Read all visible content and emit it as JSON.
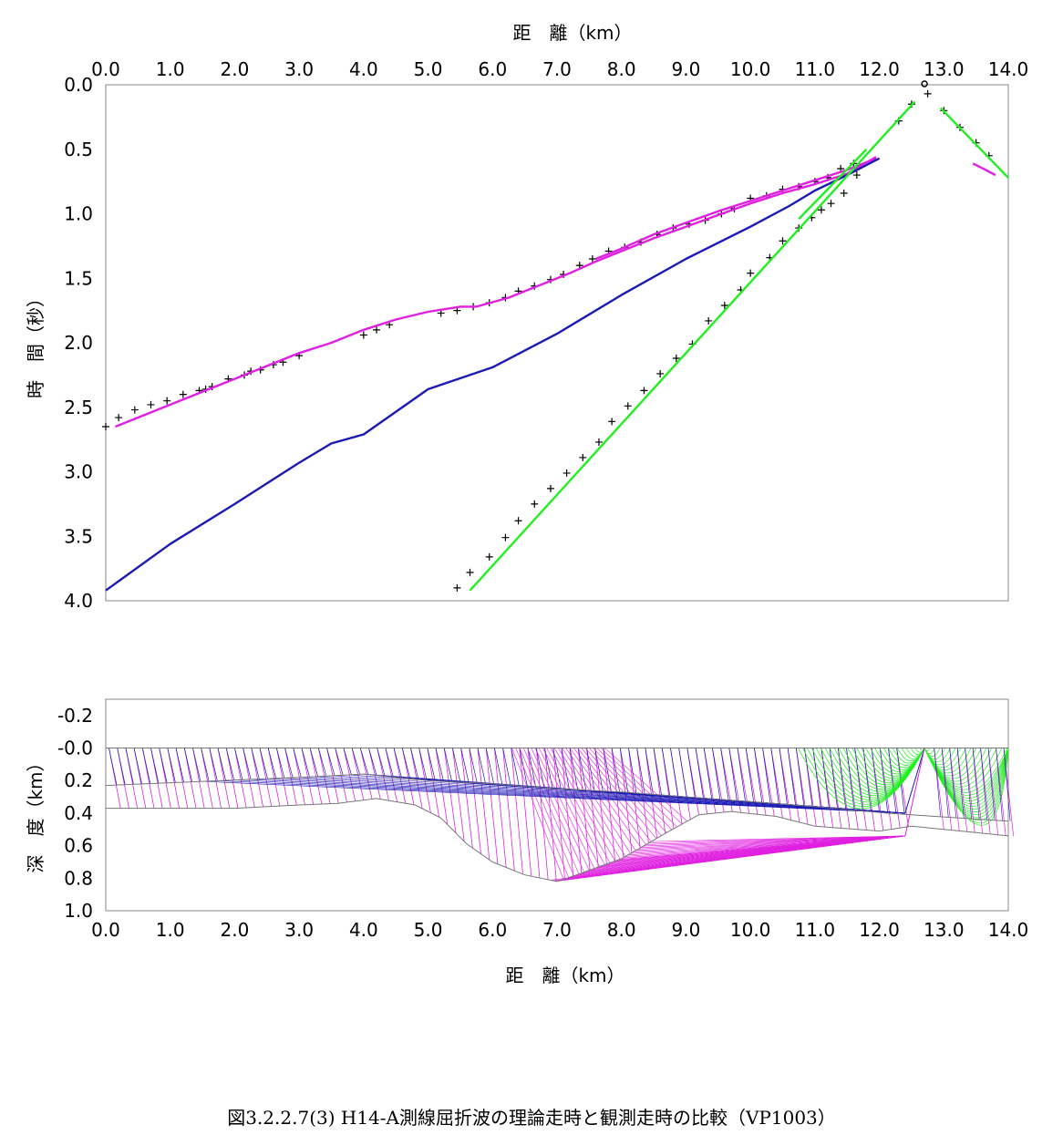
{
  "caption": "図3.2.2.7(3)  H14-A測線屈折波の理論走時と観測走時の比較（VP1003）",
  "colors": {
    "magenta": "#e020e0",
    "blue": "#1a1ab4",
    "green": "#22ee22",
    "frame": "#888888",
    "layer": "#777777",
    "marker": "#000000"
  },
  "chart_data": [
    {
      "type": "scatter",
      "title": "",
      "xlabel": "距　離（km）",
      "ylabel": "時　間（秒）",
      "xlim": [
        0,
        14
      ],
      "ylim": [
        4,
        0
      ],
      "y_inverted": true,
      "grid": false,
      "x_axis_position": "top",
      "x_ticks": [
        "0.0",
        "1.0",
        "2.0",
        "3.0",
        "4.0",
        "5.0",
        "6.0",
        "7.0",
        "8.0",
        "9.0",
        "10.0",
        "11.0",
        "12.0",
        "13.0",
        "14.0"
      ],
      "y_ticks": [
        "0.0",
        "0.5",
        "1.0",
        "1.5",
        "2.0",
        "2.5",
        "3.0",
        "3.5",
        "4.0"
      ],
      "source_x": 12.7,
      "series": [
        {
          "marker": "plus",
          "color": "marker",
          "points": [
            [
              0,
              2.65
            ],
            [
              0.2,
              2.58
            ],
            [
              0.45,
              2.52
            ],
            [
              0.7,
              2.48
            ],
            [
              0.95,
              2.45
            ],
            [
              1.2,
              2.4
            ],
            [
              1.45,
              2.37
            ],
            [
              1.55,
              2.36
            ],
            [
              1.65,
              2.34
            ],
            [
              1.9,
              2.28
            ],
            [
              2.15,
              2.25
            ],
            [
              2.25,
              2.22
            ],
            [
              2.4,
              2.21
            ],
            [
              2.6,
              2.17
            ],
            [
              2.75,
              2.15
            ],
            [
              3.0,
              2.1
            ],
            [
              4.0,
              1.94
            ],
            [
              4.2,
              1.9
            ],
            [
              4.4,
              1.86
            ],
            [
              5.2,
              1.77
            ],
            [
              5.45,
              1.75
            ],
            [
              5.7,
              1.72
            ],
            [
              5.95,
              1.69
            ],
            [
              6.2,
              1.65
            ],
            [
              6.4,
              1.6
            ],
            [
              6.65,
              1.56
            ],
            [
              6.9,
              1.51
            ],
            [
              7.1,
              1.47
            ],
            [
              7.35,
              1.4
            ],
            [
              7.55,
              1.35
            ],
            [
              7.8,
              1.29
            ],
            [
              8.05,
              1.26
            ],
            [
              8.3,
              1.22
            ],
            [
              8.55,
              1.16
            ],
            [
              8.8,
              1.11
            ],
            [
              9.05,
              1.08
            ],
            [
              9.3,
              1.05
            ],
            [
              9.55,
              1.0
            ],
            [
              9.75,
              0.96
            ],
            [
              10.0,
              0.88
            ],
            [
              10.25,
              0.86
            ],
            [
              10.5,
              0.81
            ],
            [
              10.75,
              0.79
            ],
            [
              11.0,
              0.75
            ],
            [
              11.2,
              0.72
            ],
            [
              11.4,
              0.65
            ],
            [
              11.6,
              0.61
            ],
            [
              12.3,
              0.28
            ],
            [
              12.5,
              0.15
            ],
            [
              12.75,
              0.07
            ],
            [
              13.0,
              0.2
            ],
            [
              13.25,
              0.33
            ],
            [
              13.5,
              0.45
            ],
            [
              13.7,
              0.55
            ],
            [
              5.45,
              3.9
            ],
            [
              5.65,
              3.78
            ],
            [
              5.95,
              3.66
            ],
            [
              6.2,
              3.51
            ],
            [
              6.4,
              3.38
            ],
            [
              6.65,
              3.25
            ],
            [
              6.9,
              3.13
            ],
            [
              7.15,
              3.01
            ],
            [
              7.4,
              2.89
            ],
            [
              7.65,
              2.77
            ],
            [
              7.85,
              2.61
            ],
            [
              8.1,
              2.49
            ],
            [
              8.35,
              2.37
            ],
            [
              8.6,
              2.24
            ],
            [
              8.85,
              2.12
            ],
            [
              9.1,
              2.01
            ],
            [
              9.35,
              1.83
            ],
            [
              9.6,
              1.71
            ],
            [
              9.85,
              1.59
            ],
            [
              10.0,
              1.46
            ],
            [
              10.3,
              1.34
            ],
            [
              10.5,
              1.21
            ],
            [
              10.75,
              1.11
            ],
            [
              10.95,
              1.03
            ],
            [
              11.1,
              0.97
            ],
            [
              11.25,
              0.92
            ],
            [
              11.45,
              0.84
            ],
            [
              11.65,
              0.7
            ]
          ]
        },
        {
          "marker": "line",
          "color": "magenta",
          "points": [
            [
              0.15,
              2.65
            ],
            [
              1,
              2.48
            ],
            [
              2,
              2.28
            ],
            [
              3,
              2.08
            ],
            [
              3.5,
              2.0
            ],
            [
              4,
              1.9
            ],
            [
              4.5,
              1.82
            ],
            [
              5,
              1.76
            ],
            [
              5.5,
              1.72
            ],
            [
              5.75,
              1.72
            ],
            [
              6.25,
              1.65
            ],
            [
              6.7,
              1.56
            ],
            [
              7.2,
              1.46
            ],
            [
              7.6,
              1.37
            ],
            [
              8,
              1.29
            ],
            [
              8.5,
              1.19
            ],
            [
              9,
              1.1
            ],
            [
              9.5,
              1.01
            ],
            [
              10,
              0.92
            ],
            [
              10.5,
              0.84
            ],
            [
              11,
              0.77
            ],
            [
              11.5,
              0.69
            ],
            [
              11.95,
              0.56
            ]
          ]
        },
        {
          "marker": "line",
          "color": "magenta",
          "points": [
            [
              7.6,
              1.35
            ],
            [
              8,
              1.27
            ],
            [
              8.5,
              1.16
            ],
            [
              9,
              1.07
            ],
            [
              9.5,
              0.98
            ],
            [
              10,
              0.9
            ],
            [
              10.5,
              0.82
            ],
            [
              11,
              0.74
            ],
            [
              11.5,
              0.66
            ],
            [
              11.95,
              0.57
            ]
          ]
        },
        {
          "marker": "line",
          "color": "magenta",
          "points": [
            [
              13.45,
              0.61
            ],
            [
              13.65,
              0.66
            ],
            [
              13.8,
              0.7
            ]
          ]
        },
        {
          "marker": "line",
          "color": "blue",
          "points": [
            [
              0,
              3.92
            ],
            [
              1,
              3.56
            ],
            [
              2,
              3.25
            ],
            [
              3,
              2.93
            ],
            [
              3.5,
              2.78
            ],
            [
              4,
              2.71
            ],
            [
              5,
              2.36
            ],
            [
              6,
              2.19
            ],
            [
              7,
              1.93
            ],
            [
              8,
              1.63
            ],
            [
              9,
              1.35
            ],
            [
              10,
              1.1
            ],
            [
              10.6,
              0.94
            ],
            [
              11,
              0.82
            ],
            [
              11.5,
              0.7
            ],
            [
              12.0,
              0.57
            ]
          ]
        },
        {
          "marker": "line",
          "color": "green",
          "points": [
            [
              5.65,
              3.92
            ],
            [
              12.55,
              0.13
            ]
          ]
        },
        {
          "marker": "line",
          "color": "green",
          "points": [
            [
              10.75,
              1.04
            ],
            [
              11.8,
              0.5
            ]
          ]
        },
        {
          "marker": "line",
          "color": "green",
          "points": [
            [
              12.95,
              0.18
            ],
            [
              14.0,
              0.72
            ]
          ]
        }
      ]
    },
    {
      "type": "line",
      "title": "",
      "xlabel": "距　離（km）",
      "ylabel": "深　度（km）",
      "xlim": [
        0,
        14
      ],
      "ylim": [
        1.0,
        -0.3
      ],
      "y_inverted": true,
      "grid": false,
      "x_ticks": [
        "0.0",
        "1.0",
        "2.0",
        "3.0",
        "4.0",
        "5.0",
        "6.0",
        "7.0",
        "8.0",
        "9.0",
        "10.0",
        "11.0",
        "12.0",
        "13.0",
        "14.0"
      ],
      "y_ticks": [
        "-0.2",
        "-0.0",
        "0.2",
        "0.4",
        "0.6",
        "0.8",
        "1.0"
      ],
      "source_x": 12.7,
      "layers": [
        {
          "name": "surface",
          "points": [
            [
              0,
              0
            ],
            [
              14,
              0
            ]
          ]
        },
        {
          "name": "boundary1",
          "points": [
            [
              0,
              0.23
            ],
            [
              3,
              0.18
            ],
            [
              4,
              0.16
            ],
            [
              5,
              0.2
            ],
            [
              6,
              0.22
            ],
            [
              7,
              0.25
            ],
            [
              8,
              0.27
            ],
            [
              9,
              0.3
            ],
            [
              10,
              0.33
            ],
            [
              11,
              0.36
            ],
            [
              12.1,
              0.4
            ],
            [
              14,
              0.45
            ]
          ]
        },
        {
          "name": "boundary2",
          "points": [
            [
              0,
              0.37
            ],
            [
              2,
              0.37
            ],
            [
              3,
              0.35
            ],
            [
              3.6,
              0.34
            ],
            [
              4.2,
              0.31
            ],
            [
              4.8,
              0.35
            ],
            [
              5.2,
              0.43
            ],
            [
              5.6,
              0.59
            ],
            [
              6.0,
              0.7
            ],
            [
              6.5,
              0.78
            ],
            [
              7.0,
              0.82
            ],
            [
              7.3,
              0.78
            ],
            [
              8,
              0.68
            ],
            [
              8.7,
              0.52
            ],
            [
              9.2,
              0.41
            ],
            [
              9.7,
              0.39
            ],
            [
              10.4,
              0.42
            ],
            [
              11,
              0.48
            ],
            [
              12,
              0.51
            ],
            [
              12.5,
              0.48
            ],
            [
              13.5,
              0.52
            ],
            [
              14,
              0.54
            ]
          ]
        }
      ],
      "ray_groups": [
        {
          "color": "magenta",
          "xmin": 0,
          "xmax": 12.4,
          "turn_depth": "boundary2"
        },
        {
          "color": "blue",
          "xmin": 0,
          "xmax": 12.4,
          "turn_depth": "boundary1"
        },
        {
          "color": "green",
          "xmin": 10.7,
          "xmax": 14.0,
          "turn_depth": "shallow"
        }
      ]
    }
  ]
}
